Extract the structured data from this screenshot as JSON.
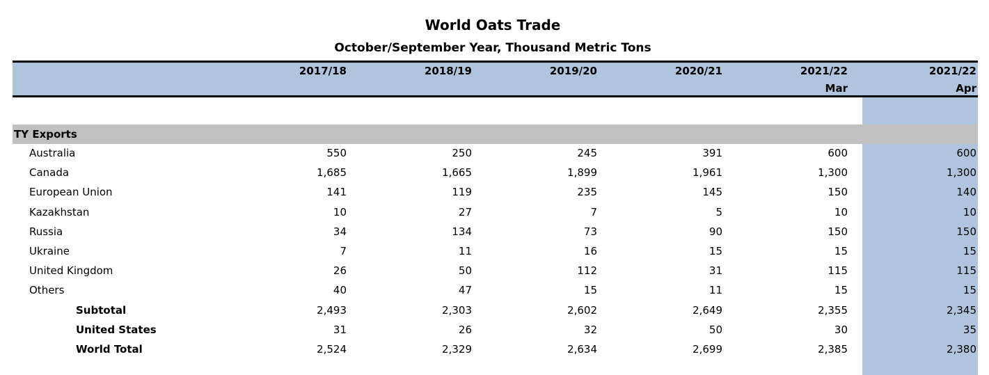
{
  "title": "World Oats Trade",
  "subtitle": "October/September Year, Thousand Metric Tons",
  "columns": [
    {
      "year": "2017/18",
      "sub": ""
    },
    {
      "year": "2018/19",
      "sub": ""
    },
    {
      "year": "2019/20",
      "sub": ""
    },
    {
      "year": "2020/21",
      "sub": ""
    },
    {
      "year": "2021/22",
      "sub": "Mar"
    },
    {
      "year": "2021/22",
      "sub": "Apr"
    }
  ],
  "section": "TY Exports",
  "rows": [
    {
      "label": "Australia",
      "bold": false,
      "values": [
        "550",
        "250",
        "245",
        "391",
        "600",
        "600"
      ]
    },
    {
      "label": "Canada",
      "bold": false,
      "values": [
        "1,685",
        "1,665",
        "1,899",
        "1,961",
        "1,300",
        "1,300"
      ]
    },
    {
      "label": "European Union",
      "bold": false,
      "values": [
        "141",
        "119",
        "235",
        "145",
        "150",
        "140"
      ]
    },
    {
      "label": "Kazakhstan",
      "bold": false,
      "values": [
        "10",
        "27",
        "7",
        "5",
        "10",
        "10"
      ]
    },
    {
      "label": "Russia",
      "bold": false,
      "values": [
        "34",
        "134",
        "73",
        "90",
        "150",
        "150"
      ]
    },
    {
      "label": "Ukraine",
      "bold": false,
      "values": [
        "7",
        "11",
        "16",
        "15",
        "15",
        "15"
      ]
    },
    {
      "label": "United Kingdom",
      "bold": false,
      "values": [
        "26",
        "50",
        "112",
        "31",
        "115",
        "115"
      ]
    },
    {
      "label": "Others",
      "bold": false,
      "values": [
        "40",
        "47",
        "15",
        "11",
        "15",
        "15"
      ]
    },
    {
      "label": "Subtotal",
      "bold": true,
      "values": [
        "2,493",
        "2,303",
        "2,602",
        "2,649",
        "2,355",
        "2,345"
      ]
    },
    {
      "label": "United States",
      "bold": true,
      "values": [
        "31",
        "26",
        "32",
        "50",
        "30",
        "35"
      ]
    },
    {
      "label": "World Total",
      "bold": true,
      "values": [
        "2,524",
        "2,329",
        "2,634",
        "2,699",
        "2,385",
        "2,380"
      ]
    }
  ],
  "colors": {
    "header": "#b0c4de",
    "section": "#c0c0c0"
  }
}
